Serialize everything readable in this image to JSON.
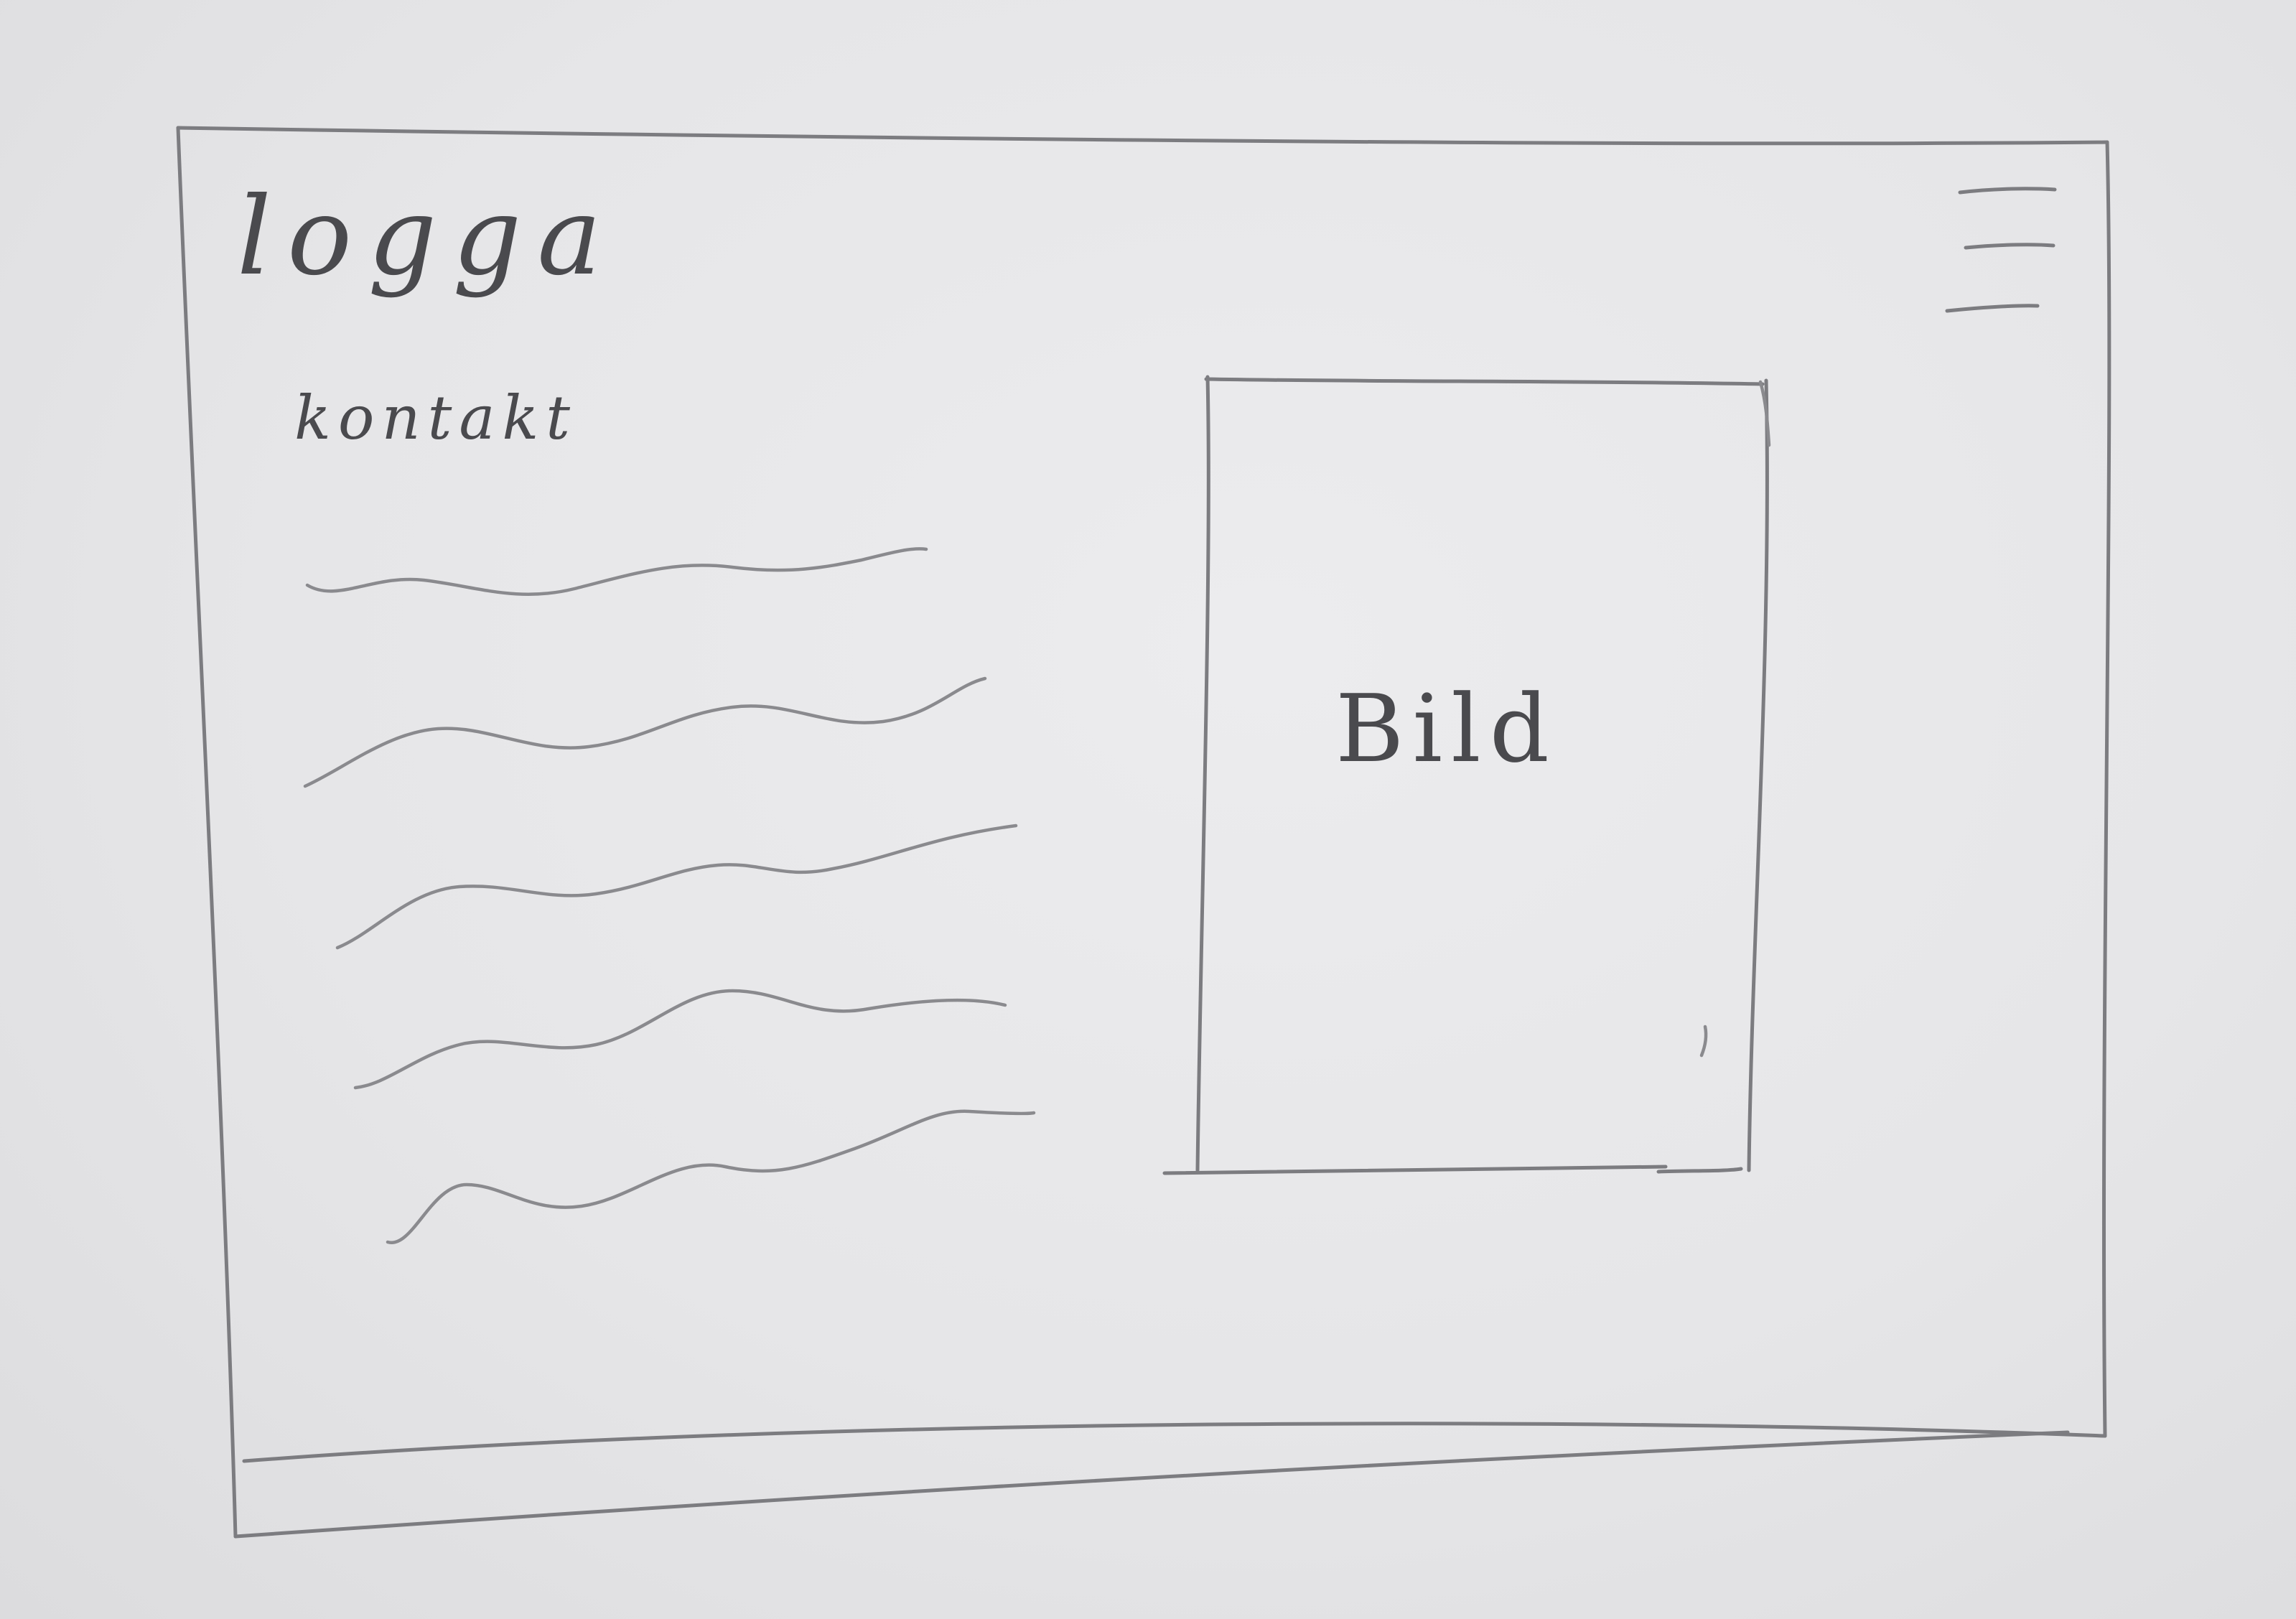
{
  "header": {
    "logo_label": "logga",
    "menu_icon": "hamburger-menu-icon"
  },
  "navigation": {
    "contact_label": "kontakt"
  },
  "main": {
    "image_placeholder_label": "Bild",
    "text_placeholder_lines": 5
  },
  "colors": {
    "paper": "#e6e6e8",
    "pencil": "#7c7c80",
    "handwriting": "#4a4a4e"
  }
}
